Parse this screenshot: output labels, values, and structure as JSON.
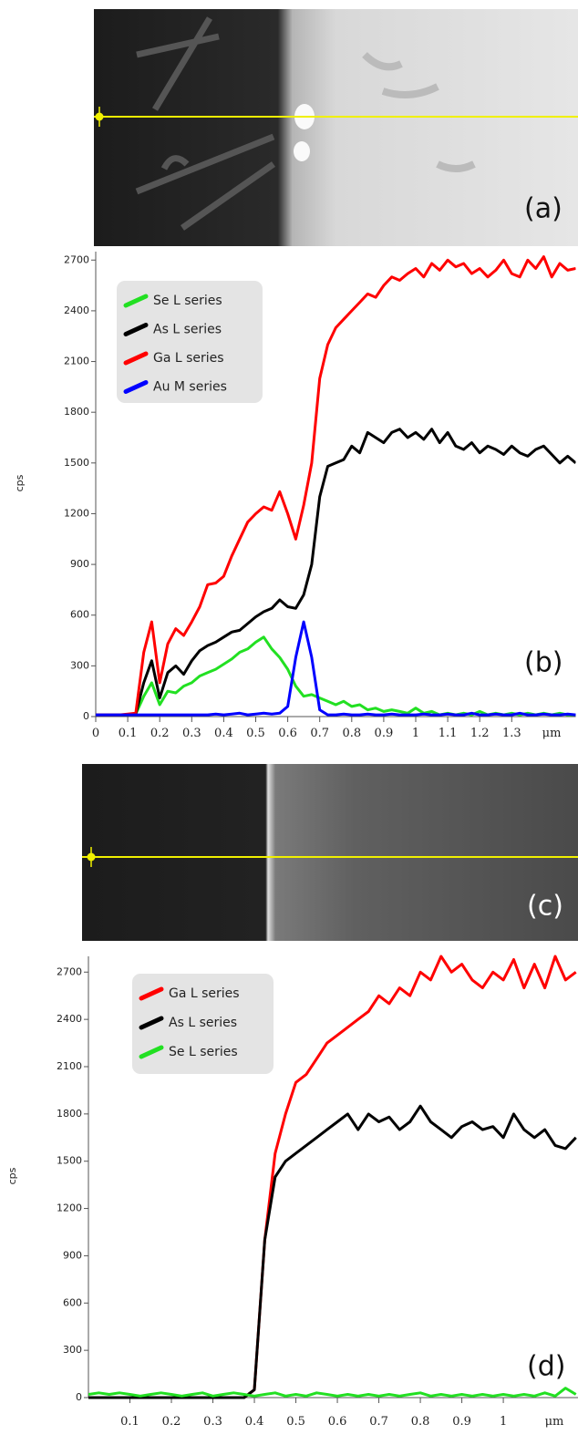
{
  "images": [
    {
      "label": "(a)"
    },
    {
      "label": "(c)"
    }
  ],
  "chart_data": [
    {
      "type": "line",
      "annotation": "(b)",
      "ylabel": "cps",
      "xlabel": "μm",
      "xlim": [
        0,
        1.5
      ],
      "ylim": [
        0,
        2750
      ],
      "xticks": [
        0,
        0.1,
        0.2,
        0.3,
        0.4,
        0.5,
        0.6,
        0.7,
        0.8,
        0.9,
        1,
        1.1,
        1.2,
        1.3
      ],
      "yticks": [
        0,
        300,
        600,
        900,
        1200,
        1500,
        1800,
        2100,
        2400,
        2700
      ],
      "x": [
        0,
        0.025,
        0.05,
        0.075,
        0.1,
        0.125,
        0.15,
        0.175,
        0.2,
        0.225,
        0.25,
        0.275,
        0.3,
        0.325,
        0.35,
        0.375,
        0.4,
        0.425,
        0.45,
        0.475,
        0.5,
        0.525,
        0.55,
        0.575,
        0.6,
        0.625,
        0.65,
        0.675,
        0.7,
        0.725,
        0.75,
        0.775,
        0.8,
        0.825,
        0.85,
        0.875,
        0.9,
        0.925,
        0.95,
        0.975,
        1,
        1.025,
        1.05,
        1.075,
        1.1,
        1.125,
        1.15,
        1.175,
        1.2,
        1.225,
        1.25,
        1.275,
        1.3,
        1.325,
        1.35,
        1.375,
        1.4,
        1.425,
        1.45,
        1.475,
        1.5
      ],
      "series": [
        {
          "name": "Se L series",
          "color": "#22e022",
          "values": [
            10,
            10,
            10,
            10,
            10,
            15,
            120,
            200,
            70,
            150,
            140,
            180,
            200,
            240,
            260,
            280,
            310,
            340,
            380,
            400,
            440,
            470,
            400,
            350,
            280,
            180,
            120,
            130,
            110,
            90,
            70,
            90,
            60,
            70,
            40,
            50,
            30,
            40,
            30,
            20,
            50,
            20,
            30,
            10,
            20,
            10,
            20,
            10,
            30,
            10,
            20,
            10,
            20,
            10,
            20,
            10,
            20,
            10,
            20,
            10,
            10
          ]
        },
        {
          "name": "As L series",
          "color": "#000000",
          "values": [
            10,
            10,
            10,
            10,
            10,
            15,
            200,
            330,
            110,
            260,
            300,
            250,
            330,
            390,
            420,
            440,
            470,
            500,
            510,
            550,
            590,
            620,
            640,
            690,
            650,
            640,
            720,
            900,
            1300,
            1480,
            1500,
            1520,
            1600,
            1560,
            1680,
            1650,
            1620,
            1680,
            1700,
            1650,
            1680,
            1640,
            1700,
            1620,
            1680,
            1600,
            1580,
            1620,
            1560,
            1600,
            1580,
            1550,
            1600,
            1560,
            1540,
            1580,
            1600,
            1550,
            1500,
            1540,
            1500
          ]
        },
        {
          "name": "Ga L series",
          "color": "#ff0000",
          "values": [
            10,
            10,
            10,
            10,
            15,
            20,
            380,
            560,
            200,
            430,
            520,
            480,
            560,
            650,
            780,
            790,
            830,
            950,
            1050,
            1150,
            1200,
            1240,
            1220,
            1330,
            1200,
            1050,
            1250,
            1500,
            2000,
            2200,
            2300,
            2350,
            2400,
            2450,
            2500,
            2480,
            2550,
            2600,
            2580,
            2620,
            2650,
            2600,
            2680,
            2640,
            2700,
            2660,
            2680,
            2620,
            2650,
            2600,
            2640,
            2700,
            2620,
            2600,
            2700,
            2650,
            2720,
            2600,
            2680,
            2640,
            2650
          ]
        },
        {
          "name": "Au M series",
          "color": "#0000ff",
          "values": [
            10,
            10,
            10,
            10,
            10,
            10,
            10,
            10,
            10,
            10,
            10,
            10,
            10,
            10,
            10,
            15,
            10,
            15,
            20,
            10,
            15,
            20,
            15,
            20,
            60,
            350,
            560,
            350,
            40,
            10,
            10,
            15,
            10,
            10,
            15,
            10,
            10,
            15,
            10,
            10,
            10,
            15,
            10,
            10,
            15,
            10,
            10,
            20,
            10,
            10,
            15,
            10,
            10,
            20,
            10,
            10,
            15,
            10,
            10,
            15,
            10
          ]
        }
      ]
    },
    {
      "type": "line",
      "annotation": "(d)",
      "ylabel": "cps",
      "xlabel": "μm",
      "xlim": [
        0,
        1.18
      ],
      "ylim": [
        0,
        2800
      ],
      "xticks": [
        0.1,
        0.2,
        0.3,
        0.4,
        0.5,
        0.6,
        0.7,
        0.8,
        0.9,
        1
      ],
      "yticks": [
        0,
        300,
        600,
        900,
        1200,
        1500,
        1800,
        2100,
        2400,
        2700
      ],
      "x": [
        0,
        0.025,
        0.05,
        0.075,
        0.1,
        0.125,
        0.15,
        0.175,
        0.2,
        0.225,
        0.25,
        0.275,
        0.3,
        0.325,
        0.35,
        0.375,
        0.4,
        0.425,
        0.45,
        0.475,
        0.5,
        0.525,
        0.55,
        0.575,
        0.6,
        0.625,
        0.65,
        0.675,
        0.7,
        0.725,
        0.75,
        0.775,
        0.8,
        0.825,
        0.85,
        0.875,
        0.9,
        0.925,
        0.95,
        0.975,
        1,
        1.025,
        1.05,
        1.075,
        1.1,
        1.125,
        1.15,
        1.175
      ],
      "series": [
        {
          "name": "Ga L series",
          "color": "#ff0000",
          "values": [
            0,
            0,
            0,
            0,
            0,
            0,
            0,
            0,
            0,
            0,
            0,
            0,
            0,
            0,
            0,
            0,
            50,
            1000,
            1550,
            1800,
            2000,
            2050,
            2150,
            2250,
            2300,
            2350,
            2400,
            2450,
            2550,
            2500,
            2600,
            2550,
            2700,
            2650,
            2800,
            2700,
            2750,
            2650,
            2600,
            2700,
            2650,
            2780,
            2600,
            2750,
            2600,
            2800,
            2650,
            2700
          ]
        },
        {
          "name": "As L series",
          "color": "#000000",
          "values": [
            0,
            0,
            0,
            0,
            0,
            0,
            0,
            0,
            0,
            0,
            0,
            0,
            0,
            0,
            0,
            0,
            50,
            1000,
            1400,
            1500,
            1550,
            1600,
            1650,
            1700,
            1750,
            1800,
            1700,
            1800,
            1750,
            1780,
            1700,
            1750,
            1850,
            1750,
            1700,
            1650,
            1720,
            1750,
            1700,
            1720,
            1650,
            1800,
            1700,
            1650,
            1700,
            1600,
            1580,
            1650
          ]
        },
        {
          "name": "Se L series",
          "color": "#22e022",
          "values": [
            20,
            30,
            20,
            30,
            20,
            10,
            20,
            30,
            20,
            10,
            20,
            30,
            10,
            20,
            30,
            20,
            10,
            20,
            30,
            10,
            20,
            10,
            30,
            20,
            10,
            20,
            10,
            20,
            10,
            20,
            10,
            20,
            30,
            10,
            20,
            10,
            20,
            10,
            20,
            10,
            20,
            10,
            20,
            10,
            30,
            10,
            60,
            20
          ]
        }
      ]
    }
  ]
}
